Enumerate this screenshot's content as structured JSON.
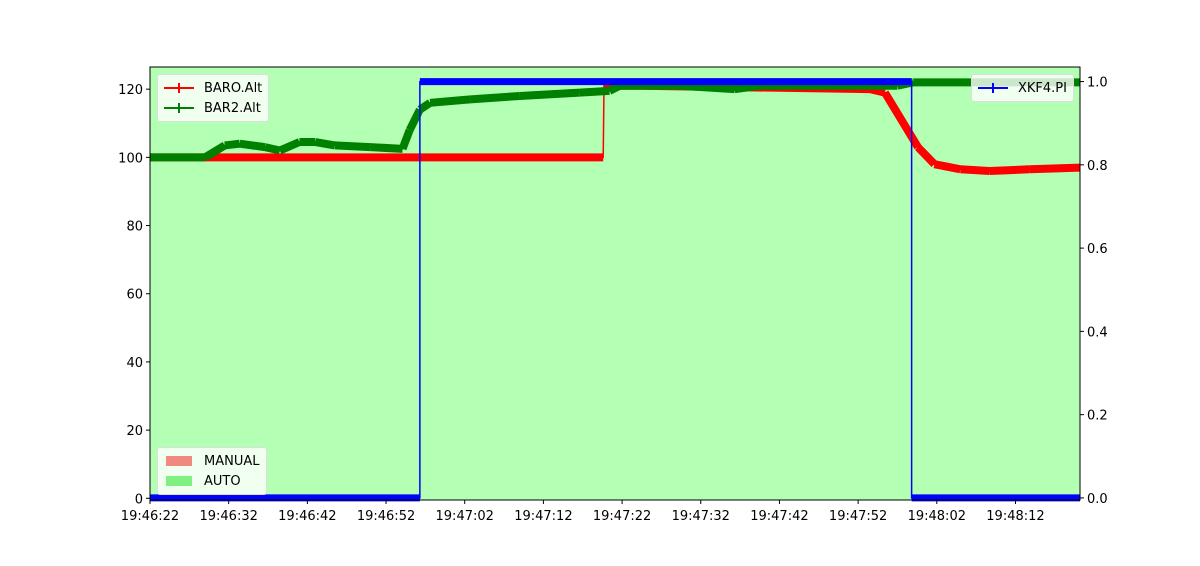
{
  "colors": {
    "background": "#b3ffb3",
    "baro": "#ff0000",
    "bar2": "#008000",
    "xkf4": "#0000ff",
    "manual": "#f08a80",
    "auto": "#80f080"
  },
  "chart_data": {
    "type": "line",
    "title": "",
    "xlabel": "",
    "ylabel": "",
    "y2label": "",
    "xlim": [
      "19:46:22",
      "19:48:20.2"
    ],
    "ylim": [
      -0.5,
      126.5
    ],
    "y2lim": [
      -0.005,
      1.035
    ],
    "grid": false,
    "x_ticks": [
      "19:46:22",
      "19:46:32",
      "19:46:42",
      "19:46:52",
      "19:47:02",
      "19:47:12",
      "19:47:22",
      "19:47:32",
      "19:47:42",
      "19:47:52",
      "19:48:02",
      "19:48:12"
    ],
    "y_ticks": [
      0,
      20,
      40,
      60,
      80,
      100,
      120
    ],
    "y2_ticks": [
      "0.0",
      "0.2",
      "0.4",
      "0.6",
      "0.8",
      "1.0"
    ],
    "shaded_regions": [
      {
        "mode": "AUTO",
        "start": "19:46:22",
        "end": "19:48:20.2"
      }
    ],
    "series": [
      {
        "name": "BARO.Alt",
        "axis": "left",
        "color": "#ff0000",
        "points": [
          [
            "19:46:22",
            100
          ],
          [
            "19:47:19.6",
            100
          ],
          [
            "19:47:19.7",
            121
          ],
          [
            "19:47:24.3",
            121
          ],
          [
            "19:47:53.5",
            120
          ],
          [
            "19:47:55.4",
            119
          ],
          [
            "19:47:59.6",
            103
          ],
          [
            "19:48:01.7",
            98
          ],
          [
            "19:48:05",
            96.5
          ],
          [
            "19:48:08.7",
            96
          ],
          [
            "19:48:13.8",
            96.5
          ],
          [
            "19:48:20.2",
            97
          ]
        ]
      },
      {
        "name": "BAR2.Alt",
        "axis": "left",
        "color": "#008000",
        "points": [
          [
            "19:46:22",
            100
          ],
          [
            "19:46:29",
            100
          ],
          [
            "19:46:31.5",
            103.5
          ],
          [
            "19:46:33.4",
            104
          ],
          [
            "19:46:36.6",
            103
          ],
          [
            "19:46:38.5",
            102
          ],
          [
            "19:46:41",
            104.5
          ],
          [
            "19:46:43",
            104.5
          ],
          [
            "19:46:45.5",
            103.5
          ],
          [
            "19:46:50",
            103
          ],
          [
            "19:46:54.1",
            102.5
          ],
          [
            "19:46:55",
            108
          ],
          [
            "19:46:56.3",
            114
          ],
          [
            "19:46:57.6",
            116
          ],
          [
            "19:47:02.7",
            117
          ],
          [
            "19:47:09",
            118
          ],
          [
            "19:47:16.6",
            119
          ],
          [
            "19:47:20.4",
            119.5
          ],
          [
            "19:47:21.7",
            121
          ],
          [
            "19:47:29.3",
            121
          ],
          [
            "19:47:36.3",
            120
          ],
          [
            "19:47:39.5",
            121
          ],
          [
            "19:47:57",
            121
          ],
          [
            "19:47:59",
            122
          ],
          [
            "19:48:20.2",
            122
          ]
        ]
      },
      {
        "name": "XKF4.PI",
        "axis": "right",
        "color": "#0000ff",
        "points": [
          [
            "19:46:22",
            0
          ],
          [
            "19:46:56.3",
            0
          ],
          [
            "19:46:56.3",
            1
          ],
          [
            "19:47:58.8",
            1
          ],
          [
            "19:47:58.8",
            0
          ],
          [
            "19:48:20.2",
            0
          ]
        ]
      }
    ],
    "legends": {
      "left_top": [
        "BARO.Alt",
        "BAR2.Alt"
      ],
      "right_top": [
        "XKF4.PI"
      ],
      "modes": [
        "MANUAL",
        "AUTO"
      ]
    },
    "legend_placement": {
      "altitude": "upper-left",
      "pi": "upper-right",
      "modes": "lower-left"
    }
  }
}
